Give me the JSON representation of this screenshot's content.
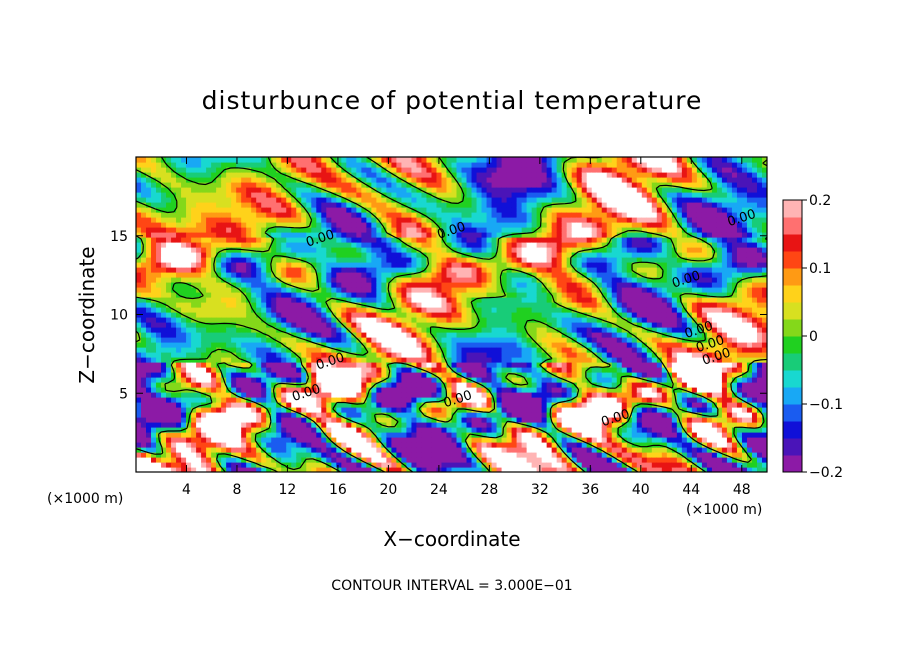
{
  "chart_data": {
    "type": "heatmap",
    "title": "disturbunce of potential temperature",
    "xlabel": "X−coordinate",
    "ylabel": "Z−coordinate",
    "x_unit_label": "(×1000 m)",
    "y_unit_label": "(×1000 m)",
    "contour_interval_label": "CONTOUR INTERVAL = 3.000E−01",
    "xlim": [
      0,
      50
    ],
    "ylim": [
      0,
      20
    ],
    "x_ticks": [
      "4",
      "8",
      "12",
      "16",
      "20",
      "24",
      "28",
      "32",
      "36",
      "40",
      "44",
      "48"
    ],
    "y_ticks": [
      "5",
      "10",
      "15"
    ],
    "colorbar": {
      "range": [
        -0.2,
        0.2
      ],
      "ticks": [
        "0.2",
        "0.1",
        "0",
        "−0.1",
        "−0.2"
      ],
      "colors": [
        "#8c1aa6",
        "#4a14b8",
        "#1010d8",
        "#1a5cf0",
        "#18a8f5",
        "#18d8d0",
        "#18cc78",
        "#20d020",
        "#84d81a",
        "#d8e020",
        "#ffd21a",
        "#ff9a14",
        "#ff4614",
        "#e81414",
        "#ff7070",
        "#ffb4b4"
      ]
    },
    "contour_labels": [
      "0.00",
      "0.00",
      "0.00",
      "0.00",
      "0.00",
      "0.00",
      "0.00",
      "0.00",
      "0.00",
      "0.00",
      "0.00"
    ]
  }
}
